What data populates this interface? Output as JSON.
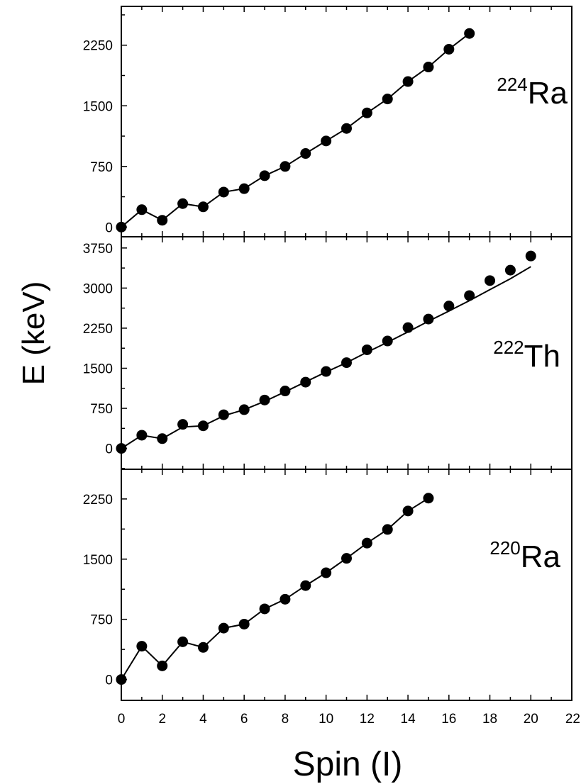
{
  "figure": {
    "ylabel": "E (keV)",
    "xlabel": "Spin (I)",
    "x_tick_labels": [
      "0",
      "2",
      "4",
      "6",
      "8",
      "10",
      "12",
      "14",
      "16",
      "18",
      "20",
      "22"
    ]
  },
  "chart_data": [
    {
      "type": "line",
      "title": "",
      "nucleus_mass": "224",
      "nucleus_symbol": "Ra",
      "xlim": [
        0,
        22
      ],
      "ylim": [
        -120,
        2730
      ],
      "y_ticks": [
        "0",
        "750",
        "1500",
        "2250"
      ],
      "grid": false,
      "series": [
        {
          "style": "markers",
          "x": [
            0,
            1,
            2,
            3,
            4,
            5,
            6,
            7,
            8,
            9,
            10,
            11,
            12,
            13,
            14,
            15,
            16,
            17
          ],
          "y": [
            0,
            215,
            84,
            290,
            250,
            433,
            475,
            635,
            750,
            910,
            1065,
            1220,
            1412,
            1585,
            1800,
            1980,
            2200,
            2395
          ]
        },
        {
          "style": "line",
          "x": [
            0,
            1,
            2,
            3,
            4,
            5,
            6,
            7,
            8,
            9,
            10,
            11,
            12,
            13,
            14,
            15,
            16,
            17
          ],
          "y": [
            0,
            215,
            84,
            290,
            250,
            433,
            475,
            635,
            750,
            910,
            1065,
            1220,
            1412,
            1585,
            1800,
            1980,
            2200,
            2395
          ]
        }
      ]
    },
    {
      "type": "line",
      "title": "",
      "nucleus_mass": "222",
      "nucleus_symbol": "Th",
      "xlim": [
        0,
        22
      ],
      "ylim": [
        -390,
        3960
      ],
      "y_ticks": [
        "0",
        "750",
        "1500",
        "2250",
        "3000",
        "3750"
      ],
      "grid": false,
      "series": [
        {
          "style": "markers",
          "x": [
            0,
            1,
            2,
            3,
            4,
            5,
            6,
            7,
            8,
            9,
            10,
            11,
            12,
            13,
            14,
            15,
            16,
            17,
            18,
            19,
            20
          ],
          "y": [
            0,
            247,
            183,
            450,
            423,
            630,
            725,
            905,
            1075,
            1240,
            1440,
            1605,
            1845,
            2010,
            2260,
            2420,
            2665,
            2860,
            3140,
            3335,
            3600
          ]
        },
        {
          "style": "line",
          "x": [
            0,
            1,
            2,
            3,
            4,
            5,
            6,
            7,
            8,
            9,
            10,
            11,
            12,
            13,
            14,
            15,
            16,
            17,
            18,
            19,
            20
          ],
          "y": [
            0,
            247,
            183,
            400,
            423,
            610,
            725,
            880,
            1060,
            1245,
            1430,
            1605,
            1800,
            1985,
            2180,
            2380,
            2570,
            2765,
            2970,
            3175,
            3400
          ]
        }
      ]
    },
    {
      "type": "line",
      "title": "",
      "nucleus_mass": "220",
      "nucleus_symbol": "Ra",
      "xlim": [
        0,
        22
      ],
      "ylim": [
        -260,
        2620
      ],
      "y_ticks": [
        "0",
        "750",
        "1500",
        "2250"
      ],
      "grid": false,
      "series": [
        {
          "style": "markers",
          "x": [
            0,
            1,
            2,
            3,
            4,
            5,
            6,
            7,
            8,
            9,
            10,
            11,
            12,
            13,
            14,
            15
          ],
          "y": [
            0,
            415,
            170,
            470,
            400,
            640,
            690,
            880,
            1000,
            1170,
            1330,
            1510,
            1700,
            1870,
            2100,
            2260
          ]
        },
        {
          "style": "line",
          "x": [
            0,
            1,
            2,
            3,
            4,
            5,
            6,
            7,
            8,
            9,
            10,
            11,
            12,
            13,
            14,
            15
          ],
          "y": [
            0,
            415,
            170,
            470,
            400,
            640,
            690,
            880,
            1000,
            1170,
            1330,
            1510,
            1700,
            1870,
            2100,
            2260
          ]
        }
      ]
    }
  ]
}
